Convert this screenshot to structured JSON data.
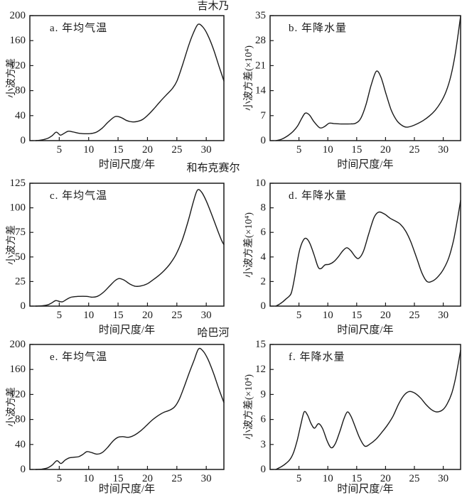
{
  "figure": {
    "station_titles": [
      "吉木乃",
      "和布克赛尔",
      "哈巴河"
    ],
    "colors": {
      "line": "#1a1a1a",
      "text": "#1a1a1a",
      "background": "#ffffff"
    }
  },
  "chart_data": [
    {
      "id": "a",
      "type": "line",
      "station": "吉木乃",
      "label": "a. 年均气温",
      "xlabel": "时间尺度/年",
      "ylabel": "小波方差",
      "xlim": [
        0,
        33
      ],
      "ylim": [
        0,
        200
      ],
      "xticks": [
        5,
        10,
        15,
        20,
        25,
        30
      ],
      "yticks": [
        0,
        40,
        80,
        120,
        160,
        200
      ],
      "grid": false,
      "legend": null,
      "points": [
        [
          1,
          0
        ],
        [
          2,
          1
        ],
        [
          3,
          3.5
        ],
        [
          3.8,
          8
        ],
        [
          4.5,
          13.5
        ],
        [
          5.2,
          8.8
        ],
        [
          5.8,
          11.5
        ],
        [
          6.5,
          15
        ],
        [
          7.3,
          14
        ],
        [
          8.3,
          11.8
        ],
        [
          9.3,
          11
        ],
        [
          10.3,
          11.3
        ],
        [
          11.3,
          13.5
        ],
        [
          12.3,
          20
        ],
        [
          13.3,
          29.5
        ],
        [
          14.5,
          38.5
        ],
        [
          15.5,
          37
        ],
        [
          16.5,
          32
        ],
        [
          17.4,
          30
        ],
        [
          18.3,
          30.8
        ],
        [
          19.2,
          34
        ],
        [
          20.2,
          42
        ],
        [
          21.2,
          52
        ],
        [
          22.2,
          63
        ],
        [
          23.2,
          73
        ],
        [
          24.2,
          83
        ],
        [
          25,
          95
        ],
        [
          26,
          122
        ],
        [
          27,
          152
        ],
        [
          27.8,
          172
        ],
        [
          28.6,
          186
        ],
        [
          29.4,
          182
        ],
        [
          30.2,
          170
        ],
        [
          31.2,
          147
        ],
        [
          32.2,
          118
        ],
        [
          33,
          95.5
        ]
      ]
    },
    {
      "id": "b",
      "type": "line",
      "station": "吉木乃",
      "label": "b. 年降水量",
      "xlabel": "时间尺度/年",
      "ylabel": "小波方差(×10⁴)",
      "xlim": [
        0,
        33
      ],
      "ylim": [
        0,
        35
      ],
      "xticks": [
        5,
        10,
        15,
        20,
        25,
        30
      ],
      "yticks": [
        0,
        7,
        14,
        21,
        28,
        35
      ],
      "grid": false,
      "legend": null,
      "points": [
        [
          1,
          0
        ],
        [
          2,
          0.4
        ],
        [
          3,
          1.3
        ],
        [
          4,
          2.6
        ],
        [
          4.8,
          4.2
        ],
        [
          5.5,
          6.3
        ],
        [
          6.1,
          7.7
        ],
        [
          6.8,
          7.2
        ],
        [
          7.6,
          5.3
        ],
        [
          8.6,
          3.6
        ],
        [
          9.4,
          3.9
        ],
        [
          10.2,
          4.85
        ],
        [
          11,
          4.8
        ],
        [
          12,
          4.7
        ],
        [
          13,
          4.65
        ],
        [
          14,
          4.7
        ],
        [
          14.8,
          4.85
        ],
        [
          15.7,
          6.2
        ],
        [
          16.6,
          10
        ],
        [
          17.5,
          15.5
        ],
        [
          18.4,
          19.4
        ],
        [
          19.2,
          17.8
        ],
        [
          20.1,
          13
        ],
        [
          21,
          8.5
        ],
        [
          22,
          5.5
        ],
        [
          23,
          4.1
        ],
        [
          23.7,
          3.75
        ],
        [
          24.6,
          4.1
        ],
        [
          25.6,
          4.8
        ],
        [
          26.6,
          5.7
        ],
        [
          27.6,
          6.9
        ],
        [
          28.6,
          8.5
        ],
        [
          29.6,
          10.8
        ],
        [
          30.5,
          13.8
        ],
        [
          31.3,
          18
        ],
        [
          32.1,
          24.5
        ],
        [
          33,
          34.8
        ]
      ]
    },
    {
      "id": "c",
      "type": "line",
      "station": "和布克赛尔",
      "label": "c. 年均气温",
      "xlabel": "时间尺度/年",
      "ylabel": "小波方差",
      "xlim": [
        0,
        33
      ],
      "ylim": [
        0,
        125
      ],
      "xticks": [
        5,
        10,
        15,
        20,
        25,
        30
      ],
      "yticks": [
        0,
        25,
        50,
        75,
        100,
        125
      ],
      "grid": false,
      "legend": null,
      "points": [
        [
          1,
          0
        ],
        [
          2,
          0.3
        ],
        [
          3,
          1.2
        ],
        [
          3.7,
          3.2
        ],
        [
          4.4,
          5.6
        ],
        [
          5.1,
          4.6
        ],
        [
          5.6,
          4.5
        ],
        [
          6.3,
          7
        ],
        [
          7,
          9
        ],
        [
          8,
          9.8
        ],
        [
          9,
          10
        ],
        [
          9.8,
          9.8
        ],
        [
          10.6,
          9.1
        ],
        [
          11.5,
          10
        ],
        [
          12.5,
          14
        ],
        [
          13.5,
          20
        ],
        [
          14.5,
          26
        ],
        [
          15.2,
          28
        ],
        [
          16,
          26.5
        ],
        [
          17,
          22.5
        ],
        [
          17.9,
          20.2
        ],
        [
          18.9,
          20.5
        ],
        [
          19.9,
          22.5
        ],
        [
          20.9,
          26.5
        ],
        [
          21.9,
          31
        ],
        [
          22.9,
          36.5
        ],
        [
          23.9,
          43.5
        ],
        [
          24.9,
          53
        ],
        [
          25.9,
          67
        ],
        [
          26.9,
          86
        ],
        [
          27.8,
          106
        ],
        [
          28.5,
          118
        ],
        [
          29.2,
          116
        ],
        [
          30,
          107
        ],
        [
          31,
          92
        ],
        [
          32,
          76
        ],
        [
          32.6,
          67
        ],
        [
          33,
          62.5
        ]
      ]
    },
    {
      "id": "d",
      "type": "line",
      "station": "和布克赛尔",
      "label": "d. 年降水量",
      "xlabel": "时间尺度/年",
      "ylabel": "小波方差(×10⁴)",
      "xlim": [
        0,
        33
      ],
      "ylim": [
        0,
        10
      ],
      "xticks": [
        5,
        10,
        15,
        20,
        25,
        30
      ],
      "yticks": [
        0,
        2,
        4,
        6,
        8,
        10
      ],
      "grid": false,
      "legend": null,
      "points": [
        [
          1,
          0
        ],
        [
          1.6,
          0.15
        ],
        [
          2.2,
          0.35
        ],
        [
          2.8,
          0.6
        ],
        [
          3.3,
          0.8
        ],
        [
          3.7,
          1.1
        ],
        [
          4.2,
          2.2
        ],
        [
          4.7,
          3.6
        ],
        [
          5.2,
          4.7
        ],
        [
          5.8,
          5.4
        ],
        [
          6.3,
          5.5
        ],
        [
          6.9,
          5.1
        ],
        [
          7.6,
          4.2
        ],
        [
          8.3,
          3.2
        ],
        [
          8.8,
          3.05
        ],
        [
          9.5,
          3.35
        ],
        [
          10.2,
          3.4
        ],
        [
          11,
          3.6
        ],
        [
          11.8,
          4
        ],
        [
          12.6,
          4.5
        ],
        [
          13.3,
          4.75
        ],
        [
          14,
          4.5
        ],
        [
          14.8,
          4
        ],
        [
          15.4,
          3.9
        ],
        [
          16.2,
          4.5
        ],
        [
          17.1,
          5.9
        ],
        [
          18,
          7.2
        ],
        [
          18.8,
          7.65
        ],
        [
          19.8,
          7.5
        ],
        [
          20.8,
          7.15
        ],
        [
          21.8,
          6.9
        ],
        [
          22.6,
          6.65
        ],
        [
          23.5,
          6.1
        ],
        [
          24.4,
          5.2
        ],
        [
          25.4,
          3.9
        ],
        [
          26.3,
          2.7
        ],
        [
          27.2,
          2
        ],
        [
          28.2,
          2.05
        ],
        [
          29.2,
          2.45
        ],
        [
          30.1,
          3.05
        ],
        [
          31,
          4
        ],
        [
          31.8,
          5.4
        ],
        [
          32.4,
          6.9
        ],
        [
          33,
          8.6
        ]
      ]
    },
    {
      "id": "e",
      "type": "line",
      "station": "哈巴河",
      "label": "e. 年均气温",
      "xlabel": "时间尺度/年",
      "ylabel": "小波方差",
      "xlim": [
        0,
        33
      ],
      "ylim": [
        0,
        200
      ],
      "xticks": [
        5,
        10,
        15,
        20,
        25,
        30
      ],
      "yticks": [
        0,
        40,
        80,
        120,
        160,
        200
      ],
      "grid": false,
      "legend": null,
      "points": [
        [
          1,
          0
        ],
        [
          2,
          0.5
        ],
        [
          3,
          2.5
        ],
        [
          3.8,
          7
        ],
        [
          4.6,
          14
        ],
        [
          5.3,
          9.5
        ],
        [
          6,
          15
        ],
        [
          6.7,
          18.5
        ],
        [
          7.5,
          19.5
        ],
        [
          8.3,
          20.5
        ],
        [
          9,
          24
        ],
        [
          9.7,
          28.5
        ],
        [
          10.5,
          27
        ],
        [
          11.4,
          24.5
        ],
        [
          12.3,
          27
        ],
        [
          13.2,
          35
        ],
        [
          14.2,
          46
        ],
        [
          15,
          51.5
        ],
        [
          15.8,
          52.5
        ],
        [
          16.8,
          51.5
        ],
        [
          17.8,
          55
        ],
        [
          18.8,
          61.5
        ],
        [
          19.8,
          70
        ],
        [
          20.8,
          79
        ],
        [
          21.8,
          86
        ],
        [
          22.8,
          91.5
        ],
        [
          23.7,
          94.5
        ],
        [
          24.6,
          100
        ],
        [
          25.4,
          112
        ],
        [
          26.2,
          131
        ],
        [
          27,
          152
        ],
        [
          27.9,
          174
        ],
        [
          28.7,
          193
        ],
        [
          29.5,
          189
        ],
        [
          30.3,
          176
        ],
        [
          31.2,
          155
        ],
        [
          32.1,
          130
        ],
        [
          33,
          107
        ]
      ]
    },
    {
      "id": "f",
      "type": "line",
      "station": "哈巴河",
      "label": "f. 年降水量",
      "xlabel": "时间尺度/年",
      "ylabel": "小波方差(×10⁴)",
      "xlim": [
        0,
        33
      ],
      "ylim": [
        0,
        15
      ],
      "xticks": [
        5,
        10,
        15,
        20,
        25,
        30
      ],
      "yticks": [
        0,
        3,
        6,
        9,
        12,
        15
      ],
      "grid": false,
      "legend": null,
      "points": [
        [
          1,
          0
        ],
        [
          2,
          0.35
        ],
        [
          2.8,
          0.75
        ],
        [
          3.5,
          1.25
        ],
        [
          4.1,
          2.1
        ],
        [
          4.7,
          3.5
        ],
        [
          5.3,
          5.3
        ],
        [
          5.9,
          6.9
        ],
        [
          6.5,
          6.5
        ],
        [
          7.1,
          5.5
        ],
        [
          7.7,
          4.95
        ],
        [
          8.4,
          5.5
        ],
        [
          9.1,
          4.9
        ],
        [
          9.9,
          3.4
        ],
        [
          10.6,
          2.6
        ],
        [
          11.3,
          3.1
        ],
        [
          12.1,
          4.6
        ],
        [
          12.8,
          6.1
        ],
        [
          13.4,
          6.9
        ],
        [
          14,
          6.4
        ],
        [
          14.7,
          5.2
        ],
        [
          15.5,
          3.8
        ],
        [
          16.4,
          2.8
        ],
        [
          17.3,
          3.05
        ],
        [
          18.3,
          3.6
        ],
        [
          19.3,
          4.4
        ],
        [
          20.3,
          5.3
        ],
        [
          21.3,
          6.4
        ],
        [
          22.3,
          7.9
        ],
        [
          23.2,
          8.9
        ],
        [
          24.1,
          9.35
        ],
        [
          25.1,
          9.15
        ],
        [
          26.1,
          8.55
        ],
        [
          27,
          7.8
        ],
        [
          28,
          7.15
        ],
        [
          28.9,
          6.9
        ],
        [
          29.9,
          7.15
        ],
        [
          30.7,
          7.9
        ],
        [
          31.5,
          9.2
        ],
        [
          32.2,
          11.2
        ],
        [
          33,
          14.3
        ]
      ]
    }
  ]
}
